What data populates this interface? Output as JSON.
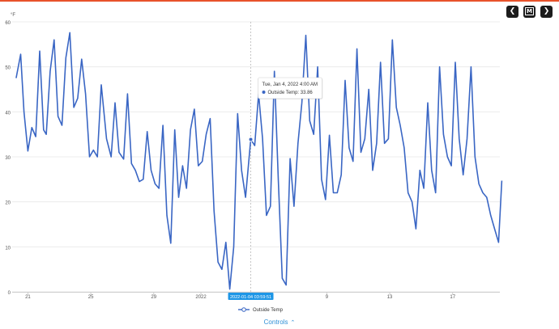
{
  "colors": {
    "accent_bar": "#e8532b",
    "line": "#3a66c4",
    "nav_bg": "#1c1c1c",
    "grid": "#ececec",
    "axis_text": "#555555",
    "crosshair": "#b8b8b8",
    "crosshair_label_bg": "#1e96e6",
    "controls_text": "#2d8fd6"
  },
  "nav": {
    "prev_icon": "chevron-left-icon",
    "prev_label": "❮",
    "menu_icon": "m-menu-icon",
    "menu_label": "M",
    "next_icon": "chevron-right-icon",
    "next_label": "❯"
  },
  "controls": {
    "label": "Controls",
    "icon": "chevron-up-icon",
    "arrow": "⌃"
  },
  "chart_data": {
    "type": "line",
    "ylabel": "°F",
    "xlabel": "",
    "ylim": [
      0,
      60
    ],
    "yticks": [
      0,
      10,
      20,
      30,
      40,
      50,
      60
    ],
    "x_start": "2021-12-20",
    "x_end": "2022-01-20",
    "xticks": [
      {
        "x": "2021-12-21",
        "label": "21"
      },
      {
        "x": "2021-12-25",
        "label": "25"
      },
      {
        "x": "2021-12-29",
        "label": "29"
      },
      {
        "x": "2022-01-01",
        "label": "2022"
      },
      {
        "x": "2022-01-05",
        "label": "5"
      },
      {
        "x": "2022-01-09",
        "label": "9"
      },
      {
        "x": "2022-01-13",
        "label": "13"
      },
      {
        "x": "2022-01-17",
        "label": "17"
      }
    ],
    "grid": true,
    "legend_position": "bottom",
    "series": [
      {
        "name": "Outside Temp",
        "x": [
          "2021-12-20 06:00",
          "2021-12-20 13:00",
          "2021-12-20 18:00",
          "2021-12-21 00:00",
          "2021-12-21 06:00",
          "2021-12-21 12:00",
          "2021-12-21 18:00",
          "2021-12-22 00:00",
          "2021-12-22 04:00",
          "2021-12-22 10:00",
          "2021-12-22 16:00",
          "2021-12-22 22:00",
          "2021-12-23 04:00",
          "2021-12-23 10:00",
          "2021-12-23 16:00",
          "2021-12-23 22:00",
          "2021-12-24 04:00",
          "2021-12-24 10:00",
          "2021-12-24 16:00",
          "2021-12-24 22:00",
          "2021-12-25 04:00",
          "2021-12-25 10:00",
          "2021-12-25 16:00",
          "2021-12-26 00:00",
          "2021-12-26 07:00",
          "2021-12-26 13:00",
          "2021-12-26 19:00",
          "2021-12-27 02:00",
          "2021-12-27 08:00",
          "2021-12-27 14:00",
          "2021-12-27 20:00",
          "2021-12-28 02:00",
          "2021-12-28 08:00",
          "2021-12-28 14:00",
          "2021-12-28 20:00",
          "2021-12-29 02:00",
          "2021-12-29 08:00",
          "2021-12-29 14:00",
          "2021-12-29 20:00",
          "2021-12-30 02:00",
          "2021-12-30 08:00",
          "2021-12-30 14:00",
          "2021-12-30 20:00",
          "2021-12-31 02:00",
          "2021-12-31 08:00",
          "2021-12-31 14:00",
          "2021-12-31 20:00",
          "2022-01-01 02:00",
          "2022-01-01 08:00",
          "2022-01-01 14:00",
          "2022-01-01 20:00",
          "2022-01-02 02:00",
          "2022-01-02 08:00",
          "2022-01-02 14:00",
          "2022-01-02 20:00",
          "2022-01-03 02:00",
          "2022-01-03 08:00",
          "2022-01-03 14:00",
          "2022-01-03 20:00",
          "2022-01-04 04:00",
          "2022-01-04 10:00",
          "2022-01-04 16:00",
          "2022-01-04 22:00",
          "2022-01-05 04:00",
          "2022-01-05 10:00",
          "2022-01-05 16:00",
          "2022-01-05 22:00",
          "2022-01-06 04:00",
          "2022-01-06 10:00",
          "2022-01-06 16:00",
          "2022-01-06 22:00",
          "2022-01-07 04:00",
          "2022-01-07 10:00",
          "2022-01-07 16:00",
          "2022-01-07 22:00",
          "2022-01-08 04:00",
          "2022-01-08 10:00",
          "2022-01-08 16:00",
          "2022-01-08 22:00",
          "2022-01-09 04:00",
          "2022-01-09 10:00",
          "2022-01-09 16:00",
          "2022-01-09 22:00",
          "2022-01-10 04:00",
          "2022-01-10 10:00",
          "2022-01-10 16:00",
          "2022-01-10 22:00",
          "2022-01-11 04:00",
          "2022-01-11 10:00",
          "2022-01-11 16:00",
          "2022-01-11 22:00",
          "2022-01-12 04:00",
          "2022-01-12 10:00",
          "2022-01-12 16:00",
          "2022-01-12 22:00",
          "2022-01-13 04:00",
          "2022-01-13 10:00",
          "2022-01-13 16:00",
          "2022-01-13 22:00",
          "2022-01-14 04:00",
          "2022-01-14 10:00",
          "2022-01-14 16:00",
          "2022-01-14 22:00",
          "2022-01-15 04:00",
          "2022-01-15 10:00",
          "2022-01-15 16:00",
          "2022-01-15 22:00",
          "2022-01-16 04:00",
          "2022-01-16 10:00",
          "2022-01-16 16:00",
          "2022-01-16 22:00",
          "2022-01-17 04:00",
          "2022-01-17 10:00",
          "2022-01-17 16:00",
          "2022-01-17 22:00",
          "2022-01-18 04:00",
          "2022-01-18 10:00",
          "2022-01-18 16:00",
          "2022-01-18 22:00",
          "2022-01-19 04:00",
          "2022-01-19 10:00",
          "2022-01-19 16:00",
          "2022-01-19 22:00",
          "2022-01-20 03:00"
        ],
        "y": [
          47.5,
          52.8,
          40.0,
          31.3,
          36.5,
          34.5,
          53.5,
          36.0,
          35.0,
          49.0,
          56.0,
          39.0,
          37.0,
          52.0,
          57.6,
          41.0,
          43.0,
          51.7,
          44.0,
          30.0,
          31.5,
          30.0,
          46.0,
          34.0,
          30.0,
          42.0,
          31.0,
          29.5,
          44.0,
          28.5,
          27.0,
          24.5,
          25.0,
          35.6,
          27.0,
          24.0,
          23.0,
          37.0,
          17.0,
          10.8,
          36.0,
          21.0,
          28.0,
          23.0,
          36.0,
          40.6,
          28.0,
          29.0,
          35.0,
          38.5,
          18.0,
          6.6,
          5.0,
          11.0,
          0.6,
          10.0,
          39.6,
          27.0,
          21.0,
          33.86,
          32.5,
          44.0,
          34.0,
          17.0,
          19.0,
          49.0,
          25.0,
          3.0,
          1.5,
          29.6,
          19.0,
          33.0,
          42.0,
          57.0,
          38.0,
          35.0,
          50.0,
          25.0,
          20.5,
          34.8,
          22.0,
          22.0,
          26.0,
          47.0,
          32.0,
          29.0,
          54.0,
          31.0,
          34.0,
          45.0,
          27.0,
          33.0,
          51.0,
          33.0,
          34.0,
          56.0,
          41.0,
          37.0,
          32.0,
          22.0,
          20.0,
          14.0,
          27.0,
          23.0,
          42.0,
          27.0,
          22.0,
          50.0,
          35.0,
          30.0,
          28.0,
          51.0,
          34.0,
          26.0,
          34.0,
          50.0,
          30.0,
          24.0,
          22.0,
          21.0,
          17.0,
          14.0,
          11.0,
          24.7
        ]
      }
    ],
    "highlight": {
      "x": "2022-01-04 04:00",
      "y": 33.86,
      "crosshair_label": "2022-01-04 03:59:51",
      "tooltip_title": "Tue, Jan 4, 2022 4:00 AM",
      "tooltip_value": "Outside Temp: 33.86"
    }
  }
}
